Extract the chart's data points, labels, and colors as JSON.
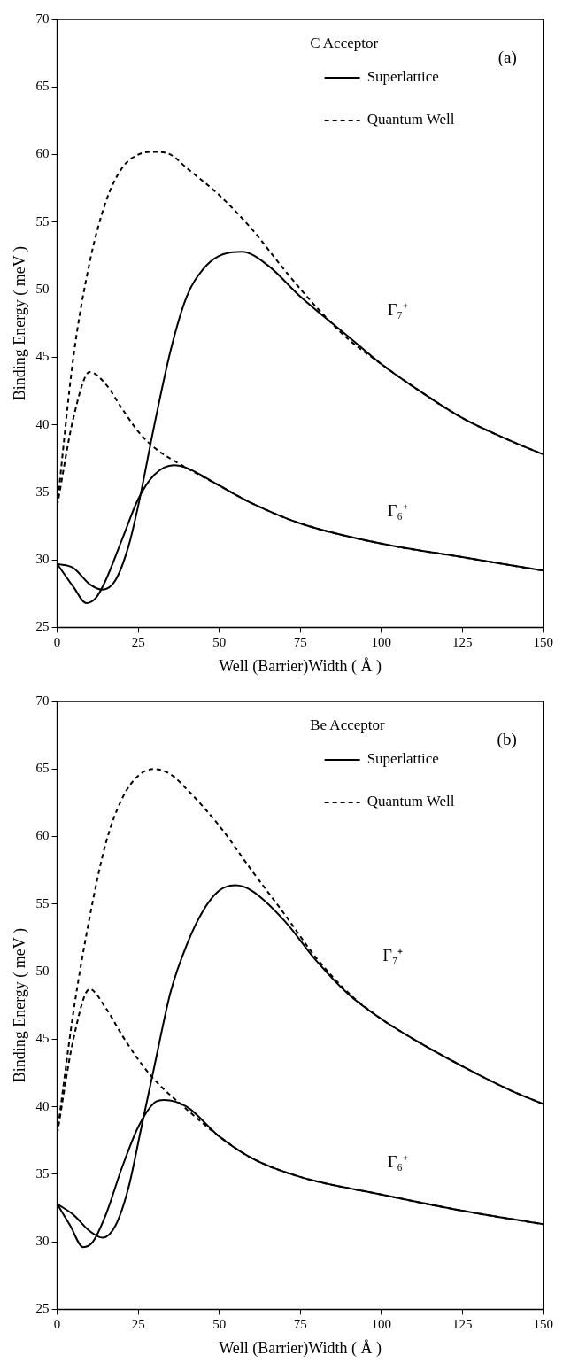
{
  "chart_data": [
    {
      "type": "line",
      "title": "C Acceptor",
      "xlabel": "Well (Barrier)Width ( Å )",
      "ylabel": "Binding Energy ( meV )",
      "xlim": [
        0,
        150
      ],
      "ylim": [
        25,
        70
      ],
      "xticks": [
        0,
        25,
        50,
        75,
        100,
        125,
        150
      ],
      "yticks": [
        25,
        30,
        35,
        40,
        45,
        50,
        55,
        60,
        65,
        70
      ],
      "legend": "top right",
      "annotations": [
        "(a)",
        "Γ₇⁺",
        "Γ₆⁺"
      ],
      "series": [
        {
          "name": "Superlattice",
          "color": "#000000",
          "line_style": "solid",
          "x": [
            0,
            5,
            10,
            14,
            18,
            22,
            25,
            30,
            35,
            40,
            45,
            50,
            57,
            65,
            75,
            90,
            100,
            110,
            125,
            140,
            150
          ],
          "values": [
            29.7,
            29.4,
            28.2,
            27.8,
            28.5,
            31,
            34,
            40,
            45.5,
            49.5,
            51.5,
            52.5,
            52.8,
            51.8,
            49.5,
            46.5,
            44.5,
            42.8,
            40.5,
            38.8,
            37.8
          ]
        },
        {
          "name": "Quantum Well",
          "color": "#000000",
          "line_style": "dashed",
          "x": [
            0,
            5,
            10,
            15,
            20,
            25,
            30,
            35,
            40,
            50,
            60,
            70,
            80,
            90,
            100,
            110,
            125,
            140,
            150
          ],
          "values": [
            34,
            45,
            52,
            56.5,
            59,
            60,
            60.2,
            60,
            59,
            57,
            54.5,
            51.5,
            48.7,
            46.3,
            44.5,
            42.8,
            40.5,
            38.8,
            37.8
          ]
        },
        {
          "color": "#000000",
          "line_style": "solid",
          "x": [
            0,
            5,
            9,
            12,
            15,
            20,
            25,
            30,
            36,
            40,
            50,
            60,
            75,
            100,
            125,
            150
          ],
          "values": [
            29.7,
            28,
            26.8,
            27.2,
            28.5,
            31.5,
            34.5,
            36.3,
            37,
            36.8,
            35.5,
            34.2,
            32.7,
            31.2,
            30.2,
            29.2
          ]
        },
        {
          "color": "#000000",
          "line_style": "dashed",
          "x": [
            0,
            5,
            10,
            15,
            20,
            25,
            30,
            40,
            50,
            60,
            75,
            100,
            125,
            150
          ],
          "values": [
            34,
            40.5,
            43.9,
            43,
            41.2,
            39.5,
            38.3,
            36.8,
            35.5,
            34.2,
            32.7,
            31.2,
            30.2,
            29.2
          ]
        }
      ]
    },
    {
      "type": "line",
      "title": "Be Acceptor",
      "xlabel": "Well (Barrier)Width ( Å )",
      "ylabel": "Binding Energy ( meV )",
      "xlim": [
        0,
        150
      ],
      "ylim": [
        25,
        70
      ],
      "xticks": [
        0,
        25,
        50,
        75,
        100,
        125,
        150
      ],
      "yticks": [
        25,
        30,
        35,
        40,
        45,
        50,
        55,
        60,
        65,
        70
      ],
      "legend": "top right",
      "annotations": [
        "(b)",
        "Γ₇⁺",
        "Γ₆⁺"
      ],
      "series": [
        {
          "name": "Superlattice",
          "color": "#000000",
          "line_style": "solid",
          "x": [
            0,
            5,
            10,
            14,
            18,
            22,
            26,
            30,
            35,
            40,
            45,
            50,
            55,
            60,
            70,
            80,
            90,
            100,
            110,
            125,
            140,
            150
          ],
          "values": [
            32.8,
            32,
            30.8,
            30.3,
            31.2,
            34,
            38.5,
            43,
            48.5,
            52,
            54.5,
            56,
            56.4,
            56,
            53.8,
            50.8,
            48.3,
            46.5,
            45,
            43,
            41.2,
            40.2
          ]
        },
        {
          "name": "Quantum Well",
          "color": "#000000",
          "line_style": "dashed",
          "x": [
            0,
            5,
            10,
            15,
            20,
            25,
            30,
            35,
            40,
            50,
            60,
            70,
            80,
            90,
            100,
            110,
            125,
            140,
            150
          ],
          "values": [
            38,
            47,
            54,
            59.5,
            62.8,
            64.5,
            65,
            64.6,
            63.5,
            60.8,
            57.5,
            54.3,
            51,
            48.4,
            46.5,
            45,
            43,
            41.2,
            40.2
          ]
        },
        {
          "color": "#000000",
          "line_style": "solid",
          "x": [
            0,
            4,
            8,
            11,
            15,
            20,
            25,
            30,
            33,
            40,
            50,
            60,
            75,
            100,
            125,
            150
          ],
          "values": [
            32.8,
            31.2,
            29.6,
            30,
            32,
            35.5,
            38.5,
            40.3,
            40.5,
            40,
            37.8,
            36.2,
            34.8,
            33.5,
            32.3,
            31.3
          ]
        },
        {
          "color": "#000000",
          "line_style": "dashed",
          "x": [
            0,
            5,
            10,
            15,
            20,
            25,
            30,
            40,
            50,
            60,
            75,
            100,
            125,
            150
          ],
          "values": [
            38,
            45,
            48.7,
            47.3,
            45.3,
            43.5,
            42,
            39.8,
            37.8,
            36.2,
            34.8,
            33.5,
            32.3,
            31.3
          ]
        }
      ]
    }
  ]
}
